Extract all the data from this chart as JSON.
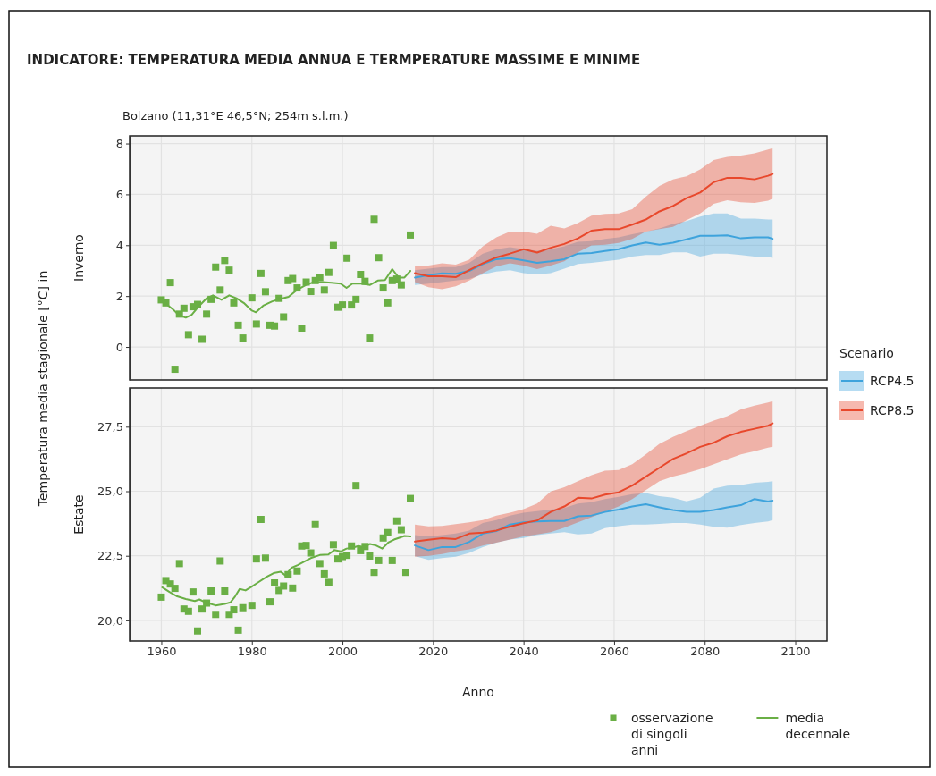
{
  "chart_data": [
    {
      "type": "line",
      "title": "INDICATORE: TEMPERATURA MEDIA ANNUA E TERMPERATURE MASSIME E MINIME",
      "subtitle": "Bolzano (11,31°E 46,5°N; 254m s.l.m.)",
      "ylabel": "Inverno",
      "annotations": [
        "Temperatura media stagionale [°C] in"
      ],
      "xlim": [
        1953,
        2107
      ],
      "xticks": [
        1960,
        1980,
        2000,
        2020,
        2040,
        2060,
        2080,
        2100
      ],
      "ylim": [
        -1.3,
        8.3
      ],
      "yticks": [
        0,
        2,
        4,
        6,
        8
      ],
      "tick_labels": "y",
      "grid": true,
      "legend": "right",
      "legend_title": "Scenario",
      "series": [
        {
          "type": "scatter",
          "marker": "square",
          "color": "#6aaf45",
          "x": [
            1960,
            1961,
            1962,
            1963,
            1964,
            1965,
            1966,
            1967,
            1968,
            1969,
            1970,
            1971,
            1972,
            1973,
            1974,
            1975,
            1976,
            1977,
            1978,
            1980,
            1981,
            1982,
            1983,
            1984,
            1985,
            1986,
            1987,
            1988,
            1989,
            1990,
            1991,
            1992,
            1993,
            1994,
            1995,
            1996,
            1997,
            1998,
            1999,
            2000,
            2001,
            2002,
            2003,
            2004,
            2005,
            2006,
            2007,
            2008,
            2009,
            2010,
            2011,
            2012,
            2013,
            2015
          ],
          "values": [
            1.85,
            1.73,
            2.53,
            -0.88,
            1.29,
            1.52,
            0.48,
            1.58,
            1.67,
            0.3,
            1.29,
            1.87,
            3.14,
            2.24,
            3.4,
            3.02,
            1.73,
            0.85,
            0.35,
            1.93,
            0.9,
            2.89,
            2.17,
            0.85,
            0.82,
            1.91,
            1.18,
            2.61,
            2.69,
            2.32,
            0.74,
            2.55,
            2.18,
            2.61,
            2.73,
            2.24,
            2.93,
            3.99,
            1.56,
            1.65,
            3.49,
            1.65,
            1.87,
            2.85,
            2.58,
            0.35,
            5.02,
            3.51,
            2.32,
            1.73,
            2.61,
            2.67,
            2.44,
            4.4
          ]
        },
        {
          "color": "#6aaf45",
          "x": [
            1960.0,
            1961.2,
            1962.8,
            1963.8,
            1965.4,
            1966.7,
            1968.4,
            1970.0,
            1971.4,
            1973.3,
            1975.0,
            1976.6,
            1978.2,
            1979.9,
            1980.9,
            1982.5,
            1984.5,
            1986.4,
            1988.1,
            1990.1,
            1992.0,
            1993.7,
            1995.6,
            1997.6,
            1999.6,
            2000.9,
            2002.2,
            2004.2,
            2006.1,
            2007.8,
            2009.4,
            2011.0,
            2012.4,
            2013.7,
            2015.0
          ],
          "values": [
            1.91,
            1.67,
            1.44,
            1.26,
            1.15,
            1.26,
            1.62,
            1.91,
            2.03,
            1.85,
            2.03,
            1.91,
            1.73,
            1.44,
            1.36,
            1.62,
            1.79,
            1.89,
            1.97,
            2.26,
            2.44,
            2.55,
            2.55,
            2.52,
            2.49,
            2.32,
            2.49,
            2.49,
            2.44,
            2.61,
            2.63,
            3.06,
            2.73,
            2.73,
            2.99
          ]
        },
        {
          "name": "RCP4.5",
          "color": "#3ea3dc",
          "x": [
            2016,
            2019,
            2022,
            2025,
            2028,
            2031,
            2034,
            2037,
            2040,
            2043,
            2046,
            2049,
            2052,
            2055,
            2058,
            2061,
            2064,
            2067,
            2070,
            2073,
            2076,
            2079,
            2082,
            2085,
            2088,
            2091,
            2094,
            2095
          ],
          "values": [
            2.73,
            2.82,
            2.89,
            2.88,
            2.99,
            3.26,
            3.45,
            3.49,
            3.4,
            3.31,
            3.37,
            3.45,
            3.67,
            3.69,
            3.77,
            3.84,
            3.99,
            4.11,
            4.02,
            4.1,
            4.23,
            4.37,
            4.37,
            4.39,
            4.27,
            4.31,
            4.31,
            4.25
          ],
          "lower": [
            2.44,
            2.49,
            2.55,
            2.61,
            2.67,
            2.85,
            2.96,
            3.02,
            2.9,
            2.85,
            2.9,
            3.08,
            3.26,
            3.31,
            3.37,
            3.43,
            3.55,
            3.61,
            3.61,
            3.72,
            3.72,
            3.55,
            3.67,
            3.67,
            3.61,
            3.55,
            3.55,
            3.49
          ],
          "upper": [
            3.02,
            3.08,
            3.14,
            3.14,
            3.31,
            3.67,
            3.84,
            3.92,
            3.84,
            3.78,
            3.84,
            3.96,
            4.13,
            4.16,
            4.25,
            4.31,
            4.43,
            4.54,
            4.66,
            4.84,
            4.95,
            5.13,
            5.25,
            5.25,
            5.05,
            5.05,
            5.01,
            5.01
          ]
        },
        {
          "name": "RCP8.5",
          "color": "#e8482c",
          "x": [
            2016,
            2019,
            2022,
            2025,
            2028,
            2031,
            2034,
            2037,
            2040,
            2043,
            2046,
            2049,
            2052,
            2055,
            2058,
            2061,
            2064,
            2067,
            2070,
            2073,
            2076,
            2079,
            2082,
            2085,
            2088,
            2091,
            2094,
            2095
          ],
          "values": [
            2.9,
            2.78,
            2.78,
            2.74,
            3.02,
            3.29,
            3.52,
            3.67,
            3.84,
            3.71,
            3.9,
            4.05,
            4.27,
            4.57,
            4.63,
            4.63,
            4.81,
            5.01,
            5.33,
            5.54,
            5.85,
            6.07,
            6.48,
            6.65,
            6.65,
            6.59,
            6.73,
            6.8
          ],
          "lower": [
            2.55,
            2.35,
            2.27,
            2.38,
            2.61,
            2.9,
            3.17,
            3.29,
            3.2,
            3.06,
            3.2,
            3.37,
            3.72,
            3.99,
            4.02,
            4.09,
            4.25,
            4.54,
            4.63,
            4.72,
            4.99,
            5.25,
            5.63,
            5.77,
            5.69,
            5.66,
            5.75,
            5.83
          ],
          "upper": [
            3.17,
            3.2,
            3.29,
            3.24,
            3.43,
            3.96,
            4.31,
            4.54,
            4.54,
            4.45,
            4.77,
            4.66,
            4.87,
            5.16,
            5.23,
            5.25,
            5.42,
            5.91,
            6.33,
            6.59,
            6.71,
            6.98,
            7.35,
            7.47,
            7.53,
            7.61,
            7.76,
            7.82
          ]
        }
      ]
    },
    {
      "type": "line",
      "xlabel": "Anno",
      "ylabel": "Estate",
      "xlim": [
        1953,
        2107
      ],
      "xticks": [
        1960,
        1980,
        2000,
        2020,
        2040,
        2060,
        2080,
        2100
      ],
      "ylim": [
        19.2,
        29.0
      ],
      "yticks": [
        {
          "value": 20,
          "label": "20,0"
        },
        {
          "value": 22.5,
          "label": "22,5"
        },
        {
          "value": 25,
          "label": "25,0"
        },
        {
          "value": 27.5,
          "label": "27,5"
        }
      ],
      "grid": true,
      "legend": "bottom",
      "series": [
        {
          "type": "scatter",
          "name": "osservazione di singoli anni",
          "marker": "square",
          "color": "#6aaf45",
          "x": [
            1960,
            1961,
            1962,
            1963,
            1964,
            1965,
            1966,
            1967,
            1968,
            1969,
            1970,
            1971,
            1972,
            1973,
            1974,
            1975,
            1976,
            1977,
            1978,
            1980,
            1981,
            1982,
            1983,
            1984,
            1985,
            1986,
            1987,
            1988,
            1989,
            1990,
            1991,
            1992,
            1993,
            1994,
            1995,
            1996,
            1997,
            1998,
            1999,
            2000,
            2001,
            2002,
            2003,
            2004,
            2005,
            2006,
            2007,
            2008,
            2009,
            2010,
            2011,
            2012,
            2013,
            2014,
            2015
          ],
          "values": [
            20.9,
            21.54,
            21.41,
            21.24,
            22.2,
            20.44,
            20.35,
            21.1,
            19.59,
            20.44,
            20.67,
            21.14,
            20.23,
            22.3,
            21.14,
            20.23,
            20.41,
            19.62,
            20.49,
            20.58,
            22.38,
            23.91,
            22.41,
            20.72,
            21.45,
            21.16,
            21.33,
            21.77,
            21.25,
            21.91,
            22.88,
            22.9,
            22.61,
            23.71,
            22.2,
            21.8,
            21.47,
            22.93,
            22.38,
            22.47,
            22.52,
            22.88,
            25.22,
            22.7,
            22.86,
            22.49,
            21.86,
            22.32,
            23.19,
            23.4,
            22.32,
            23.85,
            23.51,
            21.86,
            24.72
          ]
        },
        {
          "name": "media decennale",
          "color": "#6aaf45",
          "x": [
            1960.2,
            1961.8,
            1963.5,
            1965.4,
            1967.4,
            1968.4,
            1969.7,
            1972.0,
            1974.0,
            1975.3,
            1976.3,
            1977.3,
            1978.6,
            1979.9,
            1981.2,
            1983.2,
            1984.8,
            1986.4,
            1987.4,
            1988.7,
            1990.1,
            1991.4,
            1993.0,
            1995.0,
            1996.9,
            1998.2,
            1999.6,
            2000.9,
            2002.2,
            2003.5,
            2004.8,
            2006.1,
            2007.4,
            2008.8,
            2010.1,
            2011.4,
            2013.7,
            2015.0
          ],
          "values": [
            21.28,
            21.1,
            20.93,
            20.83,
            20.75,
            20.81,
            20.7,
            20.58,
            20.64,
            20.7,
            20.93,
            21.22,
            21.16,
            21.3,
            21.45,
            21.68,
            21.83,
            21.88,
            21.74,
            22.03,
            22.14,
            22.26,
            22.41,
            22.53,
            22.55,
            22.72,
            22.67,
            22.78,
            22.81,
            22.88,
            22.84,
            22.96,
            22.9,
            22.78,
            23.01,
            23.13,
            23.27,
            23.25
          ]
        },
        {
          "color": "#3ea3dc",
          "x": [
            2016,
            2019,
            2022,
            2025,
            2028,
            2031,
            2034,
            2037,
            2040,
            2043,
            2046,
            2049,
            2052,
            2055,
            2058,
            2061,
            2064,
            2067,
            2070,
            2073,
            2076,
            2079,
            2082,
            2085,
            2088,
            2091,
            2094,
            2095
          ],
          "values": [
            22.9,
            22.72,
            22.84,
            22.84,
            23.04,
            23.36,
            23.46,
            23.71,
            23.8,
            23.83,
            23.85,
            23.85,
            24.03,
            24.06,
            24.2,
            24.29,
            24.41,
            24.5,
            24.38,
            24.27,
            24.2,
            24.2,
            24.27,
            24.38,
            24.46,
            24.7,
            24.6,
            24.64
          ],
          "lower": [
            22.49,
            22.34,
            22.41,
            22.46,
            22.61,
            22.84,
            23.01,
            23.13,
            23.19,
            23.3,
            23.36,
            23.42,
            23.33,
            23.36,
            23.57,
            23.65,
            23.71,
            23.71,
            23.74,
            23.77,
            23.77,
            23.71,
            23.62,
            23.59,
            23.69,
            23.77,
            23.83,
            23.88
          ],
          "upper": [
            23.3,
            23.25,
            23.3,
            23.36,
            23.48,
            23.77,
            23.88,
            24.06,
            24.17,
            24.23,
            24.29,
            24.35,
            24.52,
            24.58,
            24.7,
            24.78,
            24.89,
            24.93,
            24.81,
            24.75,
            24.61,
            24.75,
            25.1,
            25.22,
            25.24,
            25.33,
            25.36,
            25.39
          ]
        },
        {
          "color": "#e8482c",
          "x": [
            2016,
            2019,
            2022,
            2025,
            2028,
            2031,
            2034,
            2037,
            2040,
            2043,
            2046,
            2049,
            2052,
            2055,
            2058,
            2061,
            2064,
            2067,
            2070,
            2073,
            2076,
            2079,
            2082,
            2085,
            2088,
            2091,
            2094,
            2095
          ],
          "values": [
            23.05,
            23.12,
            23.18,
            23.15,
            23.36,
            23.4,
            23.48,
            23.63,
            23.76,
            23.87,
            24.2,
            24.41,
            24.75,
            24.72,
            24.87,
            24.96,
            25.22,
            25.57,
            25.91,
            26.25,
            26.47,
            26.72,
            26.88,
            27.13,
            27.3,
            27.42,
            27.54,
            27.63
          ],
          "lower": [
            22.46,
            22.5,
            22.57,
            22.67,
            22.75,
            22.9,
            23.01,
            23.13,
            23.25,
            23.33,
            23.42,
            23.59,
            23.8,
            24.0,
            24.2,
            24.41,
            24.7,
            25.04,
            25.39,
            25.57,
            25.7,
            25.86,
            26.05,
            26.24,
            26.43,
            26.55,
            26.69,
            26.72
          ],
          "upper": [
            23.71,
            23.64,
            23.66,
            23.73,
            23.8,
            23.88,
            24.06,
            24.17,
            24.31,
            24.52,
            24.99,
            25.16,
            25.39,
            25.62,
            25.8,
            25.82,
            26.05,
            26.43,
            26.84,
            27.1,
            27.33,
            27.54,
            27.74,
            27.91,
            28.17,
            28.32,
            28.44,
            28.49
          ]
        }
      ]
    }
  ]
}
